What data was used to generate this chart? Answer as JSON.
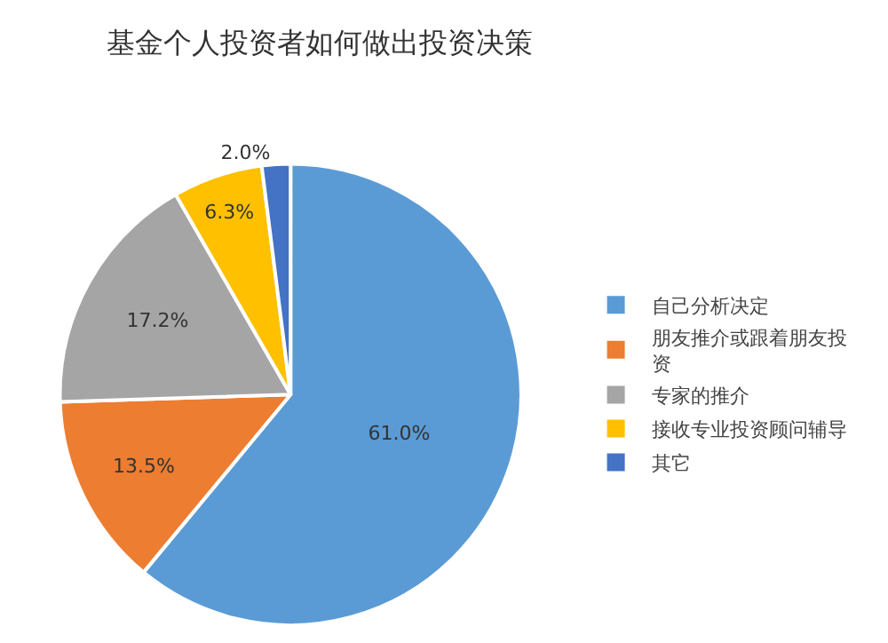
{
  "chart_data": {
    "type": "pie",
    "title": "基金个人投资者如何做出投资决策",
    "categories": [
      "自己分析决定",
      "朋友推介或跟着朋友投资",
      "专家的推介",
      "接收专业投资顾问辅导",
      "其它"
    ],
    "values": [
      61.0,
      13.5,
      17.2,
      6.3,
      2.0
    ],
    "value_labels": [
      "61.0%",
      "13.5%",
      "17.2%",
      "6.3%",
      "2.0%"
    ],
    "colors": [
      "#5b9bd5",
      "#ed7d31",
      "#a5a5a5",
      "#ffc000",
      "#4472c4"
    ],
    "legend": "right"
  }
}
